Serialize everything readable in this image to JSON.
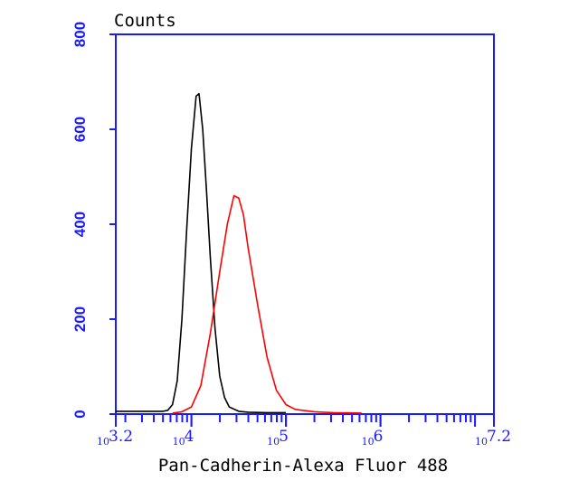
{
  "chart_data": {
    "type": "line",
    "title": "Counts",
    "xlabel": "Pan-Cadherin-Alexa Fluor 488",
    "ylabel": "",
    "x_scale": "log",
    "xlim_log10": [
      3.2,
      7.2
    ],
    "ylim": [
      0,
      800
    ],
    "y_ticks": [
      "0",
      "200",
      "400",
      "600",
      "800"
    ],
    "x_ticks": [
      {
        "log10": 3.2,
        "base": "10",
        "exp": "3.2"
      },
      {
        "log10": 4,
        "base": "10",
        "exp": "4"
      },
      {
        "log10": 5,
        "base": "10",
        "exp": "5"
      },
      {
        "log10": 6,
        "base": "10",
        "exp": "6"
      },
      {
        "log10": 7.2,
        "base": "10",
        "exp": "7.2"
      }
    ],
    "series": [
      {
        "color": "#000000",
        "points": [
          [
            3.2,
            6
          ],
          [
            3.4,
            6
          ],
          [
            3.6,
            6
          ],
          [
            3.7,
            6
          ],
          [
            3.75,
            8
          ],
          [
            3.8,
            20
          ],
          [
            3.85,
            70
          ],
          [
            3.9,
            200
          ],
          [
            3.95,
            390
          ],
          [
            4.0,
            560
          ],
          [
            4.05,
            670
          ],
          [
            4.08,
            675
          ],
          [
            4.12,
            600
          ],
          [
            4.16,
            470
          ],
          [
            4.2,
            330
          ],
          [
            4.25,
            180
          ],
          [
            4.3,
            80
          ],
          [
            4.35,
            35
          ],
          [
            4.4,
            15
          ],
          [
            4.5,
            6
          ],
          [
            4.6,
            4
          ],
          [
            4.8,
            3
          ],
          [
            5.0,
            3
          ]
        ]
      },
      {
        "color": "#ff0000",
        "points": [
          [
            3.8,
            2
          ],
          [
            3.9,
            5
          ],
          [
            4.0,
            15
          ],
          [
            4.1,
            60
          ],
          [
            4.2,
            170
          ],
          [
            4.3,
            300
          ],
          [
            4.38,
            400
          ],
          [
            4.45,
            460
          ],
          [
            4.5,
            455
          ],
          [
            4.55,
            420
          ],
          [
            4.6,
            350
          ],
          [
            4.7,
            230
          ],
          [
            4.8,
            120
          ],
          [
            4.9,
            50
          ],
          [
            5.0,
            20
          ],
          [
            5.1,
            10
          ],
          [
            5.3,
            5
          ],
          [
            5.5,
            3
          ],
          [
            5.8,
            2
          ]
        ]
      }
    ]
  }
}
